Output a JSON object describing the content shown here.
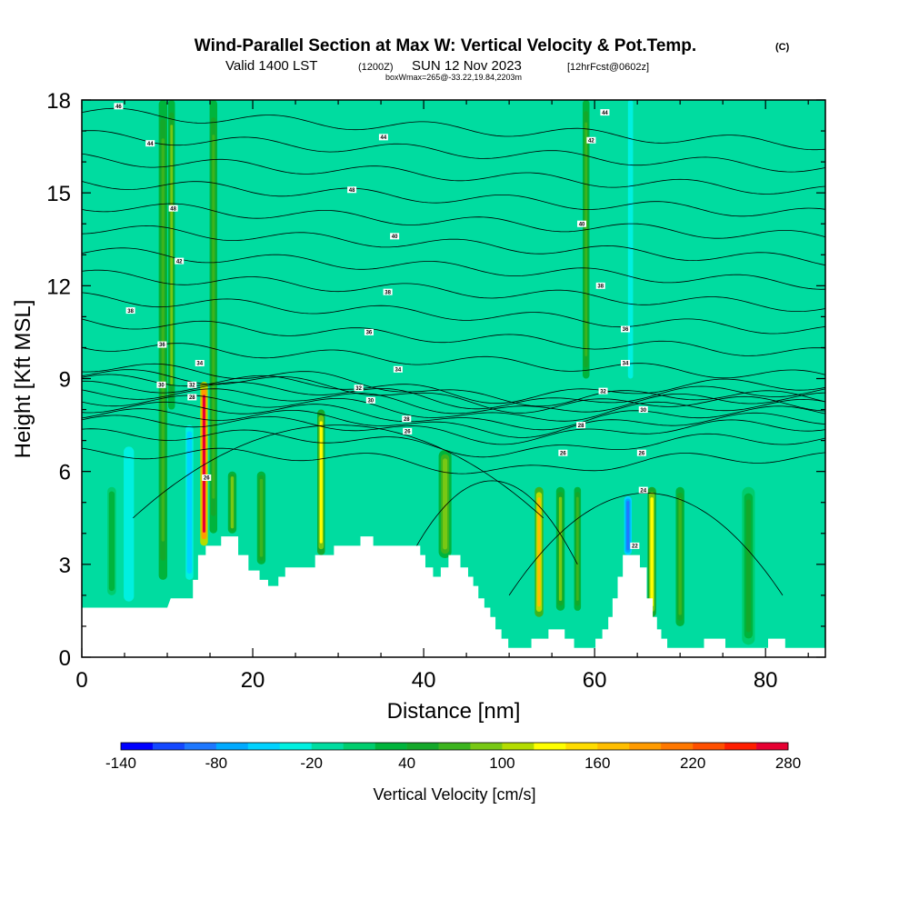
{
  "chart_data": {
    "type": "heatmap",
    "title_main": "Wind-Parallel Section at Max W: Vertical Velocity & Pot.Temp.",
    "title_mark": "(C)",
    "subtitle_a": "Valid 1400 LST",
    "subtitle_b": "(1200Z)",
    "subtitle_c": "SUN 12 Nov 2023",
    "subtitle_d": "[12hrFcst@0602z]",
    "subtitle_e": "boxWmax=265@-33.22,19.84,2203m",
    "xlabel": "Distance [nm]",
    "ylabel": "Height [Kft MSL]",
    "xlim": [
      0,
      87
    ],
    "ylim": [
      0,
      18
    ],
    "x_ticks": [
      "0",
      "20",
      "40",
      "60",
      "80"
    ],
    "x_tick_values": [
      0,
      20,
      40,
      60,
      80
    ],
    "y_ticks": [
      "0",
      "3",
      "6",
      "9",
      "12",
      "15",
      "18"
    ],
    "y_tick_values": [
      0,
      3,
      6,
      9,
      12,
      15,
      18
    ],
    "colorbar": {
      "label": "Vertical Velocity [cm/s]",
      "min": -140,
      "max": 280,
      "step": 20,
      "tick_labels": [
        "-140",
        "-80",
        "-20",
        "40",
        "100",
        "160",
        "220",
        "280"
      ],
      "tick_values": [
        -140,
        -80,
        -20,
        40,
        100,
        160,
        220,
        280
      ],
      "colors": [
        "#0000ff",
        "#1448ff",
        "#1e78ff",
        "#00aaff",
        "#00d2ff",
        "#00f0e0",
        "#00dca0",
        "#00cd6e",
        "#00b43c",
        "#14a82a",
        "#3cb41e",
        "#78c814",
        "#b4dc00",
        "#ffff00",
        "#ffdc00",
        "#ffbe00",
        "#ff9b00",
        "#ff7800",
        "#ff5000",
        "#ff1e00",
        "#e60032"
      ]
    },
    "background_value": -10,
    "updraft_columns": [
      {
        "x": 3.5,
        "w": 1.0,
        "base": 2.0,
        "top": 5.5,
        "value": 30
      },
      {
        "x": 5.5,
        "w": 1.2,
        "base": 1.8,
        "top": 6.8,
        "value": -40
      },
      {
        "x": 9.5,
        "w": 1.0,
        "base": 2.5,
        "top": 18,
        "value": 60
      },
      {
        "x": 10.5,
        "w": 0.8,
        "base": 8,
        "top": 18,
        "value": 80
      },
      {
        "x": 12.6,
        "w": 0.9,
        "base": 2.5,
        "top": 7.5,
        "value": -60
      },
      {
        "x": 14.3,
        "w": 0.9,
        "base": 3.6,
        "top": 8.9,
        "value": 265
      },
      {
        "x": 15.4,
        "w": 0.9,
        "base": 4,
        "top": 18,
        "value": 60
      },
      {
        "x": 17.6,
        "w": 1.0,
        "base": 4,
        "top": 6,
        "value": 80
      },
      {
        "x": 21.0,
        "w": 1.0,
        "base": 3,
        "top": 6,
        "value": 60
      },
      {
        "x": 28.0,
        "w": 0.9,
        "base": 3.3,
        "top": 8.0,
        "value": 120
      },
      {
        "x": 34.5,
        "w": 1.5,
        "base": 5,
        "top": 9,
        "value": -20
      },
      {
        "x": 42.5,
        "w": 1.5,
        "base": 3.2,
        "top": 6.7,
        "value": 90
      },
      {
        "x": 51.5,
        "w": 1.0,
        "base": 1.5,
        "top": 6,
        "value": -20
      },
      {
        "x": 53.5,
        "w": 1.0,
        "base": 1.3,
        "top": 5.5,
        "value": 160
      },
      {
        "x": 56.0,
        "w": 1.0,
        "base": 1.5,
        "top": 5.5,
        "value": 80
      },
      {
        "x": 58.0,
        "w": 0.8,
        "base": 1.5,
        "top": 5.5,
        "value": 60
      },
      {
        "x": 59.0,
        "w": 0.8,
        "base": 9,
        "top": 18,
        "value": 60
      },
      {
        "x": 63.9,
        "w": 0.9,
        "base": 3.3,
        "top": 5.2,
        "value": -100
      },
      {
        "x": 64.2,
        "w": 0.6,
        "base": 9,
        "top": 18,
        "value": -40
      },
      {
        "x": 66.7,
        "w": 1.0,
        "base": 1.3,
        "top": 5.5,
        "value": 120
      },
      {
        "x": 70.0,
        "w": 1.0,
        "base": 1.0,
        "top": 5.5,
        "value": 60
      },
      {
        "x": 78.0,
        "w": 1.5,
        "base": 0.4,
        "top": 5.5,
        "value": 40
      }
    ],
    "terrain": [
      [
        0,
        1.6
      ],
      [
        5,
        1.6
      ],
      [
        10,
        1.6
      ],
      [
        10.4,
        1.9
      ],
      [
        13,
        1.9
      ],
      [
        13,
        2.5
      ],
      [
        13.6,
        2.5
      ],
      [
        13.6,
        3.3
      ],
      [
        14.5,
        3.3
      ],
      [
        14.5,
        3.6
      ],
      [
        16.3,
        3.6
      ],
      [
        16.3,
        3.9
      ],
      [
        18.3,
        3.9
      ],
      [
        18.3,
        3.3
      ],
      [
        19.5,
        3.3
      ],
      [
        19.5,
        2.8
      ],
      [
        20.8,
        2.8
      ],
      [
        20.8,
        2.5
      ],
      [
        21.8,
        2.5
      ],
      [
        21.8,
        2.3
      ],
      [
        23,
        2.3
      ],
      [
        23,
        2.6
      ],
      [
        23.8,
        2.6
      ],
      [
        23.8,
        2.9
      ],
      [
        27.3,
        2.9
      ],
      [
        27.3,
        3.3
      ],
      [
        29.5,
        3.3
      ],
      [
        29.5,
        3.6
      ],
      [
        32.6,
        3.6
      ],
      [
        32.6,
        3.9
      ],
      [
        34.1,
        3.9
      ],
      [
        34.1,
        3.6
      ],
      [
        39.6,
        3.6
      ],
      [
        39.6,
        3.3
      ],
      [
        40.2,
        3.3
      ],
      [
        40.2,
        2.9
      ],
      [
        41.1,
        2.9
      ],
      [
        41.1,
        2.6
      ],
      [
        42,
        2.6
      ],
      [
        42,
        2.9
      ],
      [
        42.9,
        2.9
      ],
      [
        42.9,
        3.3
      ],
      [
        44.3,
        3.3
      ],
      [
        44.3,
        2.9
      ],
      [
        45.2,
        2.9
      ],
      [
        45.2,
        2.6
      ],
      [
        45.8,
        2.6
      ],
      [
        45.8,
        2.3
      ],
      [
        46.4,
        2.3
      ],
      [
        46.4,
        1.9
      ],
      [
        47.1,
        1.9
      ],
      [
        47.1,
        1.6
      ],
      [
        47.8,
        1.6
      ],
      [
        47.8,
        1.3
      ],
      [
        48.4,
        1.3
      ],
      [
        48.4,
        0.9
      ],
      [
        49.1,
        0.9
      ],
      [
        49.1,
        0.6
      ],
      [
        49.9,
        0.6
      ],
      [
        49.9,
        0.3
      ],
      [
        52.6,
        0.3
      ],
      [
        52.6,
        0.6
      ],
      [
        54.6,
        0.6
      ],
      [
        54.6,
        0.9
      ],
      [
        56.5,
        0.9
      ],
      [
        56.5,
        0.6
      ],
      [
        57.6,
        0.6
      ],
      [
        57.6,
        0.3
      ],
      [
        60.1,
        0.3
      ],
      [
        60.1,
        0.6
      ],
      [
        60.9,
        0.6
      ],
      [
        60.9,
        0.9
      ],
      [
        61.6,
        0.9
      ],
      [
        61.6,
        1.3
      ],
      [
        62.1,
        1.3
      ],
      [
        62.1,
        1.9
      ],
      [
        62.7,
        1.9
      ],
      [
        62.7,
        2.6
      ],
      [
        63.3,
        2.6
      ],
      [
        63.3,
        3.3
      ],
      [
        65.3,
        3.3
      ],
      [
        65.3,
        2.9
      ],
      [
        66.1,
        2.9
      ],
      [
        66.1,
        1.9
      ],
      [
        66.8,
        1.9
      ],
      [
        66.8,
        1.3
      ],
      [
        67.3,
        1.3
      ],
      [
        67.3,
        0.9
      ],
      [
        67.8,
        0.9
      ],
      [
        67.8,
        0.6
      ],
      [
        68.5,
        0.6
      ],
      [
        68.5,
        0.3
      ],
      [
        72.8,
        0.3
      ],
      [
        72.8,
        0.6
      ],
      [
        75.3,
        0.6
      ],
      [
        75.3,
        0.3
      ],
      [
        80.3,
        0.3
      ],
      [
        80.3,
        0.6
      ],
      [
        82.3,
        0.6
      ],
      [
        82.3,
        0.3
      ],
      [
        87,
        0.3
      ]
    ],
    "isentrope_labels": [
      {
        "x": 4.3,
        "y": 17.8,
        "text": "46"
      },
      {
        "x": 8.0,
        "y": 16.6,
        "text": "44"
      },
      {
        "x": 10.7,
        "y": 14.5,
        "text": "48"
      },
      {
        "x": 11.4,
        "y": 12.8,
        "text": "42"
      },
      {
        "x": 5.7,
        "y": 11.2,
        "text": "38"
      },
      {
        "x": 9.4,
        "y": 10.1,
        "text": "36"
      },
      {
        "x": 13.8,
        "y": 9.5,
        "text": "34"
      },
      {
        "x": 9.3,
        "y": 8.8,
        "text": "30"
      },
      {
        "x": 12.9,
        "y": 8.8,
        "text": "32"
      },
      {
        "x": 12.9,
        "y": 8.4,
        "text": "28"
      },
      {
        "x": 14.6,
        "y": 5.8,
        "text": "26"
      },
      {
        "x": 35.3,
        "y": 16.8,
        "text": "44"
      },
      {
        "x": 31.6,
        "y": 15.1,
        "text": "48"
      },
      {
        "x": 36.6,
        "y": 13.6,
        "text": "40"
      },
      {
        "x": 35.8,
        "y": 11.8,
        "text": "38"
      },
      {
        "x": 33.6,
        "y": 10.5,
        "text": "36"
      },
      {
        "x": 37.0,
        "y": 9.3,
        "text": "34"
      },
      {
        "x": 32.4,
        "y": 8.7,
        "text": "32"
      },
      {
        "x": 33.8,
        "y": 8.3,
        "text": "30"
      },
      {
        "x": 38.0,
        "y": 7.7,
        "text": "28"
      },
      {
        "x": 38.1,
        "y": 7.3,
        "text": "26"
      },
      {
        "x": 61.2,
        "y": 17.6,
        "text": "44"
      },
      {
        "x": 59.6,
        "y": 16.7,
        "text": "42"
      },
      {
        "x": 58.5,
        "y": 14.0,
        "text": "40"
      },
      {
        "x": 60.7,
        "y": 12.0,
        "text": "38"
      },
      {
        "x": 63.6,
        "y": 10.6,
        "text": "36"
      },
      {
        "x": 63.6,
        "y": 9.5,
        "text": "34"
      },
      {
        "x": 61.0,
        "y": 8.6,
        "text": "32"
      },
      {
        "x": 65.7,
        "y": 8.0,
        "text": "30"
      },
      {
        "x": 58.4,
        "y": 7.5,
        "text": "28"
      },
      {
        "x": 56.3,
        "y": 6.6,
        "text": "26"
      },
      {
        "x": 65.5,
        "y": 6.6,
        "text": "26"
      },
      {
        "x": 65.7,
        "y": 5.4,
        "text": "24"
      },
      {
        "x": 64.7,
        "y": 3.6,
        "text": "22"
      }
    ]
  }
}
